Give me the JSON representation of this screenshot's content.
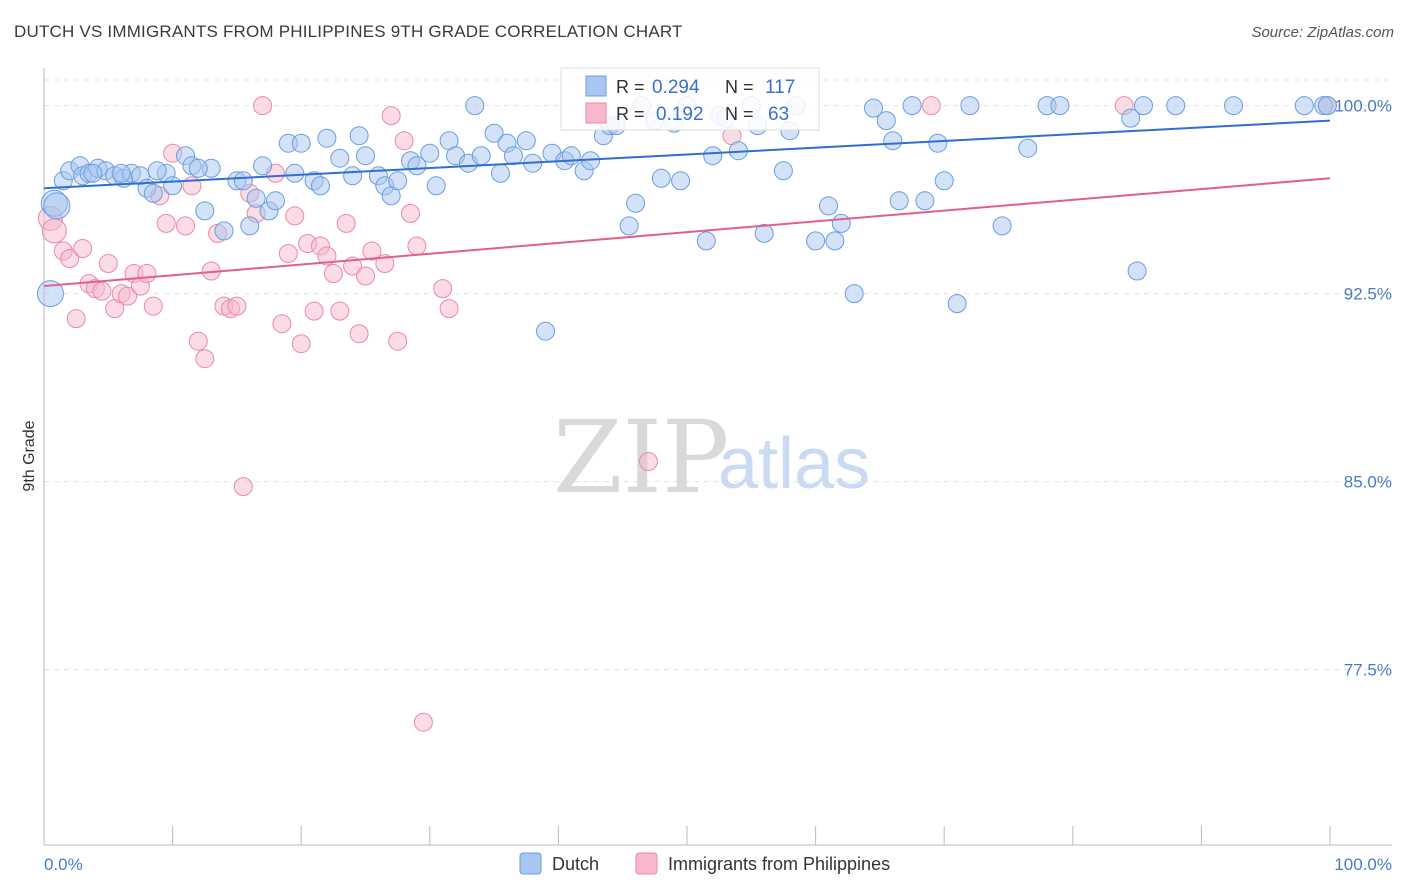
{
  "title": "DUTCH VS IMMIGRANTS FROM PHILIPPINES 9TH GRADE CORRELATION CHART",
  "source": "Source: ZipAtlas.com",
  "watermark": {
    "zip": "ZIP",
    "atlas": "atlas"
  },
  "legend_box": {
    "rows": [
      {
        "r_label": "R =",
        "r_value": "0.294",
        "n_label": "N =",
        "n_value": "117",
        "color": "#a8c6f0",
        "stroke": "#6a9de0"
      },
      {
        "r_label": "R =",
        "r_value": "0.192",
        "n_label": "N =",
        "n_value": "63",
        "color": "#f7b8cb",
        "stroke": "#e98aa8"
      }
    ]
  },
  "chart_data": {
    "type": "scatter",
    "title": "DUTCH VS IMMIGRANTS FROM PHILIPPINES 9TH GRADE CORRELATION CHART",
    "xlabel": "",
    "ylabel": "9th Grade",
    "xlim": [
      0,
      100
    ],
    "ylim": [
      70.5,
      101.5
    ],
    "x_tick_labels": [
      "0.0%",
      "100.0%"
    ],
    "y_ticks": [
      {
        "value": 100.0,
        "label": "100.0%"
      },
      {
        "value": 92.5,
        "label": "92.5%"
      },
      {
        "value": 85.0,
        "label": "85.0%"
      },
      {
        "value": 77.5,
        "label": "77.5%"
      }
    ],
    "grid": true,
    "legend": "bottom-center",
    "series": [
      {
        "name": "Dutch",
        "color": "#a8c6f0",
        "stroke": "#6a9de0",
        "trend": {
          "x": [
            0,
            100
          ],
          "y": [
            96.7,
            99.4
          ],
          "color": "#2f6fd0"
        },
        "points": [
          [
            0.8,
            96.1
          ],
          [
            1.5,
            97.0
          ],
          [
            2.0,
            97.4
          ],
          [
            2.8,
            97.6
          ],
          [
            3.0,
            97.2
          ],
          [
            3.5,
            97.3
          ],
          [
            4.2,
            97.5
          ],
          [
            4.8,
            97.4
          ],
          [
            5.5,
            97.2
          ],
          [
            6.2,
            97.1
          ],
          [
            6.8,
            97.3
          ],
          [
            7.5,
            97.2
          ],
          [
            8.0,
            96.7
          ],
          [
            8.5,
            96.5
          ],
          [
            9.5,
            97.3
          ],
          [
            10.0,
            96.8
          ],
          [
            11.0,
            98.0
          ],
          [
            11.5,
            97.6
          ],
          [
            12.5,
            95.8
          ],
          [
            13.0,
            97.5
          ],
          [
            14.0,
            95.0
          ],
          [
            15.0,
            97.0
          ],
          [
            15.5,
            97.0
          ],
          [
            16.0,
            95.2
          ],
          [
            17.0,
            97.6
          ],
          [
            17.5,
            95.8
          ],
          [
            18.0,
            96.2
          ],
          [
            19.0,
            98.5
          ],
          [
            19.5,
            97.3
          ],
          [
            20.0,
            98.5
          ],
          [
            21.0,
            97.0
          ],
          [
            21.5,
            96.8
          ],
          [
            22.0,
            98.7
          ],
          [
            23.0,
            97.9
          ],
          [
            24.0,
            97.2
          ],
          [
            24.5,
            98.8
          ],
          [
            25.0,
            98.0
          ],
          [
            26.0,
            97.2
          ],
          [
            26.5,
            96.8
          ],
          [
            27.0,
            96.4
          ],
          [
            27.5,
            97.0
          ],
          [
            28.5,
            97.8
          ],
          [
            29.0,
            97.6
          ],
          [
            30.0,
            98.1
          ],
          [
            30.5,
            96.8
          ],
          [
            31.5,
            98.6
          ],
          [
            32.0,
            98.0
          ],
          [
            33.0,
            97.7
          ],
          [
            33.5,
            100.0
          ],
          [
            34.0,
            98.0
          ],
          [
            35.0,
            98.9
          ],
          [
            35.5,
            97.3
          ],
          [
            36.0,
            98.5
          ],
          [
            36.5,
            98.0
          ],
          [
            37.5,
            98.6
          ],
          [
            38.0,
            97.7
          ],
          [
            39.0,
            91.0
          ],
          [
            39.5,
            98.1
          ],
          [
            40.5,
            97.8
          ],
          [
            41.0,
            98.0
          ],
          [
            42.0,
            97.4
          ],
          [
            42.5,
            97.8
          ],
          [
            43.5,
            98.8
          ],
          [
            44.0,
            99.2
          ],
          [
            44.5,
            99.2
          ],
          [
            45.5,
            95.2
          ],
          [
            46.0,
            96.1
          ],
          [
            46.5,
            100.0
          ],
          [
            47.5,
            99.4
          ],
          [
            48.0,
            97.1
          ],
          [
            49.0,
            99.3
          ],
          [
            49.5,
            97.0
          ],
          [
            50.0,
            100.0
          ],
          [
            51.5,
            94.6
          ],
          [
            52.0,
            98.0
          ],
          [
            52.5,
            99.6
          ],
          [
            53.0,
            99.5
          ],
          [
            54.0,
            98.2
          ],
          [
            55.0,
            100.0
          ],
          [
            55.5,
            99.2
          ],
          [
            56.0,
            94.9
          ],
          [
            57.5,
            97.4
          ],
          [
            58.5,
            100.0
          ],
          [
            60.0,
            94.6
          ],
          [
            61.0,
            96.0
          ],
          [
            61.5,
            94.6
          ],
          [
            62.0,
            95.3
          ],
          [
            63.0,
            92.5
          ],
          [
            64.5,
            99.9
          ],
          [
            65.5,
            99.4
          ],
          [
            66.0,
            98.6
          ],
          [
            66.5,
            96.2
          ],
          [
            67.5,
            100.0
          ],
          [
            68.5,
            96.2
          ],
          [
            69.5,
            98.5
          ],
          [
            70.0,
            97.0
          ],
          [
            71.0,
            92.1
          ],
          [
            72.0,
            100.0
          ],
          [
            74.5,
            95.2
          ],
          [
            76.5,
            98.3
          ],
          [
            78.0,
            100.0
          ],
          [
            79.0,
            100.0
          ],
          [
            84.5,
            99.5
          ],
          [
            85.0,
            93.4
          ],
          [
            85.5,
            100.0
          ],
          [
            88.0,
            100.0
          ],
          [
            92.5,
            100.0
          ],
          [
            98.0,
            100.0
          ],
          [
            99.5,
            100.0
          ],
          [
            99.8,
            100.0
          ],
          [
            0.5,
            92.5
          ],
          [
            1.0,
            96.0
          ],
          [
            3.8,
            97.3
          ],
          [
            6.0,
            97.3
          ],
          [
            8.8,
            97.4
          ],
          [
            12.0,
            97.5
          ],
          [
            16.5,
            96.3
          ],
          [
            58.0,
            99.0
          ]
        ]
      },
      {
        "name": "Immigrants from Philippines",
        "color": "#f7b8cb",
        "stroke": "#e98aa8",
        "trend": {
          "x": [
            0,
            100
          ],
          "y": [
            92.8,
            97.1
          ],
          "color": "#e0608a"
        },
        "points": [
          [
            0.5,
            95.5
          ],
          [
            0.8,
            95.0
          ],
          [
            1.5,
            94.2
          ],
          [
            2.0,
            93.9
          ],
          [
            2.5,
            91.5
          ],
          [
            3.0,
            94.3
          ],
          [
            3.5,
            92.9
          ],
          [
            4.0,
            92.7
          ],
          [
            4.5,
            92.6
          ],
          [
            5.0,
            93.7
          ],
          [
            5.5,
            91.9
          ],
          [
            6.0,
            92.5
          ],
          [
            6.5,
            92.4
          ],
          [
            7.0,
            93.3
          ],
          [
            7.5,
            92.8
          ],
          [
            8.0,
            93.3
          ],
          [
            8.5,
            92.0
          ],
          [
            9.0,
            96.4
          ],
          [
            9.5,
            95.3
          ],
          [
            10.0,
            98.1
          ],
          [
            11.0,
            95.2
          ],
          [
            11.5,
            96.8
          ],
          [
            12.0,
            90.6
          ],
          [
            12.5,
            89.9
          ],
          [
            13.0,
            93.4
          ],
          [
            13.5,
            94.9
          ],
          [
            14.0,
            92.0
          ],
          [
            14.5,
            91.9
          ],
          [
            15.0,
            92.0
          ],
          [
            15.5,
            84.8
          ],
          [
            16.0,
            96.5
          ],
          [
            16.5,
            95.7
          ],
          [
            17.0,
            100.0
          ],
          [
            18.0,
            97.3
          ],
          [
            18.5,
            91.3
          ],
          [
            19.0,
            94.1
          ],
          [
            19.5,
            95.6
          ],
          [
            20.0,
            90.5
          ],
          [
            20.5,
            94.5
          ],
          [
            21.0,
            91.8
          ],
          [
            21.5,
            94.4
          ],
          [
            22.0,
            94.0
          ],
          [
            22.5,
            93.3
          ],
          [
            23.0,
            91.8
          ],
          [
            23.5,
            95.3
          ],
          [
            24.0,
            93.6
          ],
          [
            24.5,
            90.9
          ],
          [
            25.0,
            93.2
          ],
          [
            25.5,
            94.2
          ],
          [
            26.5,
            93.7
          ],
          [
            27.0,
            99.6
          ],
          [
            27.5,
            90.6
          ],
          [
            28.0,
            98.6
          ],
          [
            28.5,
            95.7
          ],
          [
            29.0,
            94.4
          ],
          [
            29.5,
            75.4
          ],
          [
            31.0,
            92.7
          ],
          [
            31.5,
            91.9
          ],
          [
            47.0,
            85.8
          ],
          [
            53.5,
            98.8
          ],
          [
            69.0,
            100.0
          ],
          [
            84.0,
            100.0
          ],
          [
            99.8,
            100.0
          ]
        ]
      }
    ]
  }
}
